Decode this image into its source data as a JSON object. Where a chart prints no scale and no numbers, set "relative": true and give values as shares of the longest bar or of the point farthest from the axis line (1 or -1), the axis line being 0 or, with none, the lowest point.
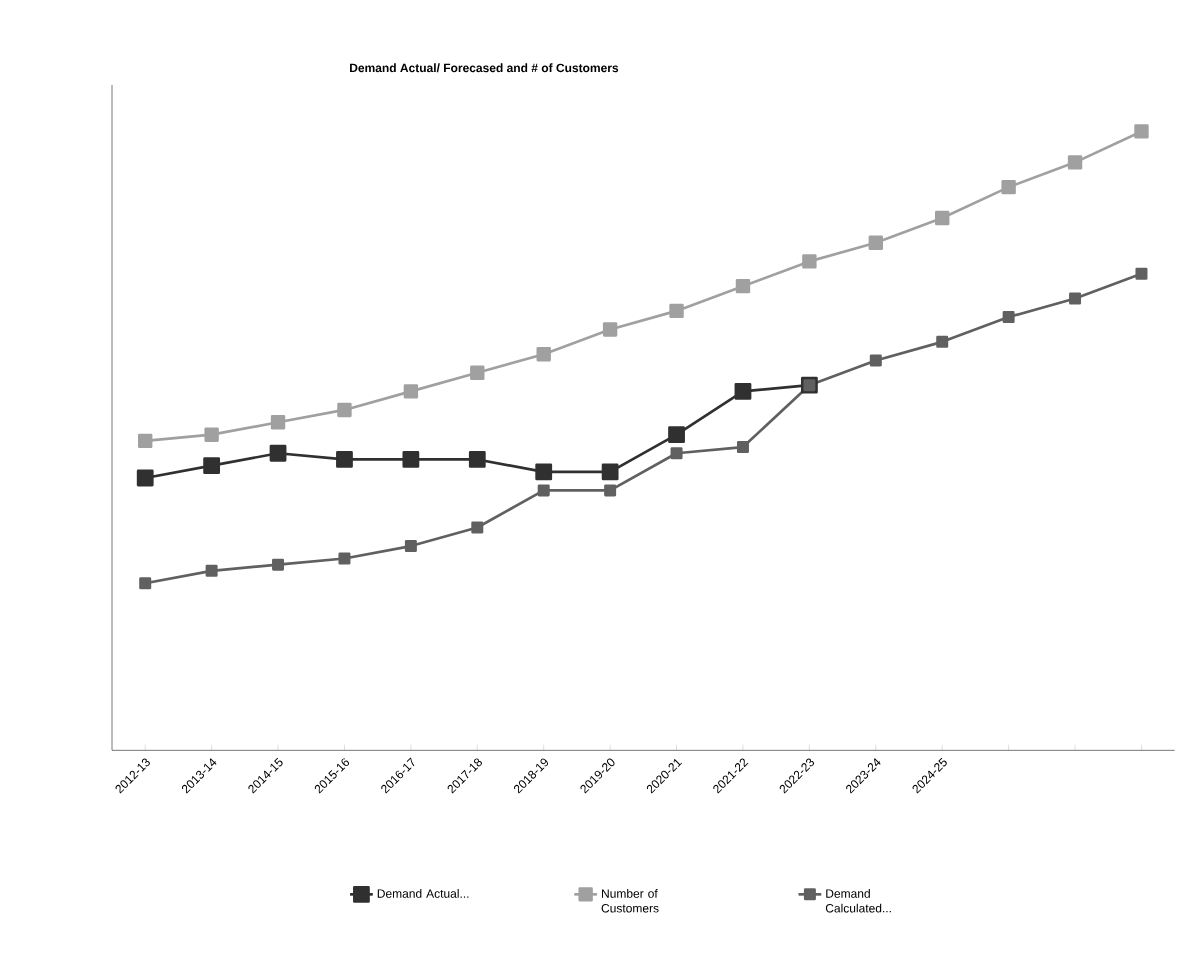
{
  "chart_data": {
    "type": "line",
    "title": "Demand Actual/ Forecased and # of Customers",
    "categories": [
      "2012-13",
      "2013-14",
      "2014-15",
      "2015-16",
      "2016-17",
      "2017-18",
      "2018-19",
      "2019-20",
      "2020-21",
      "2021-22",
      "2022-23",
      "2023-24",
      "2024-25",
      null,
      null,
      null
    ],
    "series": [
      {
        "name": "Demand Actual...",
        "color": "#303030",
        "values": [
          0.44,
          0.46,
          0.48,
          0.47,
          0.47,
          0.47,
          0.45,
          0.45,
          0.51,
          0.58,
          0.59,
          null,
          null,
          null,
          null,
          null
        ]
      },
      {
        "name": "Number of Customers",
        "color": "#a0a0a0",
        "values": [
          0.5,
          0.51,
          0.53,
          0.55,
          0.58,
          0.61,
          0.64,
          0.68,
          0.71,
          0.75,
          0.79,
          0.82,
          0.86,
          0.91,
          0.95,
          1
        ]
      },
      {
        "name": "Demand Calculated...",
        "color": "#606060",
        "values": [
          0.27,
          0.29,
          0.3,
          0.31,
          0.33,
          0.36,
          0.42,
          0.42,
          0.48,
          0.49,
          0.59,
          0.63,
          0.66,
          0.7,
          0.73,
          0.77
        ]
      }
    ],
    "relative": true,
    "legend": "bottom",
    "marker": "square",
    "line_style": "solid"
  }
}
